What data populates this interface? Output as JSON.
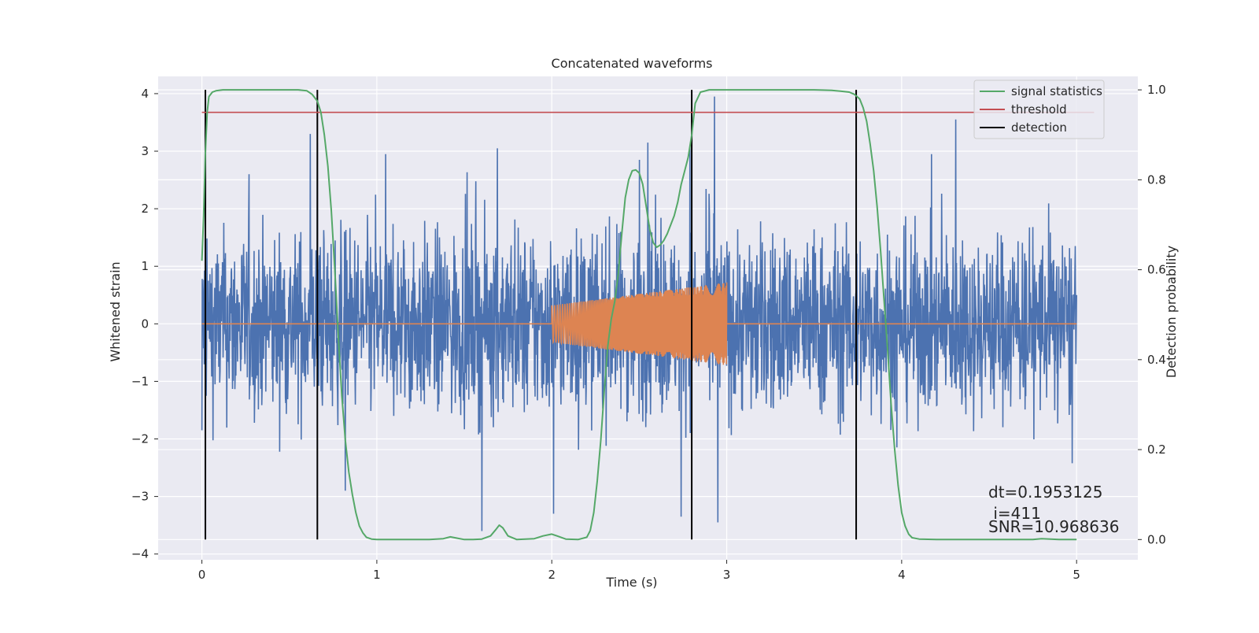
{
  "chart_data": {
    "type": "line",
    "title": "Concatenated waveforms",
    "xlabel": "Time (s)",
    "ylabel": "Whitened strain",
    "ylabel_right": "Detection probability",
    "xlim": [
      -0.25,
      5.35
    ],
    "ylim": [
      -4.1,
      4.3
    ],
    "ylim_right": [
      -0.045,
      1.03
    ],
    "x_ticks": [
      0,
      1,
      2,
      3,
      4,
      5
    ],
    "x_tick_labels": [
      "0",
      "1",
      "2",
      "3",
      "4",
      "5"
    ],
    "y_ticks": [
      4,
      3,
      2,
      1,
      0,
      -1,
      -2,
      -3,
      -4
    ],
    "y_tick_labels": [
      "4",
      "3",
      "2",
      "1",
      "0",
      "−1",
      "−2",
      "−3",
      "−4"
    ],
    "y_right_ticks": [
      1.0,
      0.8,
      0.6,
      0.4,
      0.2,
      0.0
    ],
    "y_right_tick_labels": [
      "1.0",
      "0.8",
      "0.6",
      "0.4",
      "0.2",
      "0.0"
    ],
    "grid": true,
    "legend_position": "top-right",
    "legend": [
      "signal statistics",
      "threshold",
      "detection"
    ],
    "colors": {
      "background": "#eaeaf2",
      "strain": "#4c72b0",
      "template": "#dd8452",
      "signal_statistics": "#55a868",
      "threshold": "#c44e52",
      "detection": "#000000",
      "grid": "#ffffff"
    },
    "series": [
      {
        "name": "signal statistics",
        "axis": "right",
        "x": [
          0.0,
          0.01,
          0.02,
          0.03,
          0.04,
          0.06,
          0.08,
          0.12,
          0.2,
          0.3,
          0.4,
          0.5,
          0.55,
          0.6,
          0.63,
          0.66,
          0.68,
          0.7,
          0.72,
          0.74,
          0.76,
          0.78,
          0.8,
          0.82,
          0.84,
          0.86,
          0.88,
          0.9,
          0.92,
          0.94,
          0.97,
          1.0,
          1.1,
          1.2,
          1.3,
          1.38,
          1.42,
          1.46,
          1.5,
          1.55,
          1.6,
          1.65,
          1.68,
          1.7,
          1.72,
          1.75,
          1.8,
          1.9,
          1.95,
          2.0,
          2.03,
          2.08,
          2.15,
          2.2,
          2.22,
          2.24,
          2.26,
          2.28,
          2.3,
          2.32,
          2.34,
          2.36,
          2.38,
          2.4,
          2.42,
          2.44,
          2.46,
          2.48,
          2.5,
          2.52,
          2.54,
          2.56,
          2.58,
          2.6,
          2.62,
          2.64,
          2.66,
          2.68,
          2.7,
          2.72,
          2.74,
          2.76,
          2.78,
          2.8,
          2.82,
          2.85,
          2.9,
          3.0,
          3.2,
          3.4,
          3.5,
          3.6,
          3.65,
          3.7,
          3.73,
          3.76,
          3.78,
          3.8,
          3.82,
          3.84,
          3.86,
          3.88,
          3.9,
          3.92,
          3.94,
          3.96,
          3.98,
          4.0,
          4.02,
          4.04,
          4.06,
          4.1,
          4.2,
          4.4,
          4.6,
          4.75,
          4.8,
          4.9,
          5.0
        ],
        "values": [
          0.62,
          0.72,
          0.86,
          0.95,
          0.985,
          0.995,
          0.998,
          1.0,
          1.0,
          1.0,
          1.0,
          1.0,
          1.0,
          0.998,
          0.99,
          0.975,
          0.95,
          0.9,
          0.83,
          0.73,
          0.6,
          0.45,
          0.32,
          0.22,
          0.15,
          0.1,
          0.06,
          0.03,
          0.015,
          0.005,
          0.001,
          0.0,
          0.0,
          0.0,
          0.0,
          0.002,
          0.006,
          0.003,
          0.0,
          0.0,
          0.001,
          0.008,
          0.022,
          0.032,
          0.026,
          0.008,
          0.0,
          0.002,
          0.008,
          0.012,
          0.008,
          0.001,
          0.0,
          0.005,
          0.02,
          0.06,
          0.13,
          0.22,
          0.33,
          0.43,
          0.49,
          0.53,
          0.59,
          0.68,
          0.76,
          0.8,
          0.82,
          0.822,
          0.815,
          0.79,
          0.74,
          0.69,
          0.66,
          0.65,
          0.655,
          0.665,
          0.68,
          0.7,
          0.72,
          0.75,
          0.79,
          0.82,
          0.85,
          0.9,
          0.97,
          0.995,
          1.0,
          1.0,
          1.0,
          1.0,
          1.0,
          0.999,
          0.997,
          0.995,
          0.99,
          0.98,
          0.96,
          0.93,
          0.88,
          0.82,
          0.74,
          0.64,
          0.53,
          0.42,
          0.3,
          0.2,
          0.12,
          0.06,
          0.03,
          0.012,
          0.004,
          0.001,
          0.0,
          0.0,
          0.0,
          0.0,
          0.002,
          0.0,
          0.0
        ]
      },
      {
        "name": "threshold",
        "axis": "right",
        "x": [
          0.0,
          5.1
        ],
        "values": [
          0.95,
          0.95
        ]
      },
      {
        "name": "detection",
        "axis": "right",
        "vlines_x": [
          0.02,
          0.66,
          2.8,
          3.74
        ],
        "range": [
          0.0,
          1.0
        ]
      },
      {
        "axis": "left",
        "description_free": true,
        "x_range": [
          0.0,
          5.0
        ],
        "amplitude_envelope": 2.0,
        "peaks": [
          {
            "x": 0.0,
            "y": 2.05
          },
          {
            "x": 0.0,
            "y": -1.85
          },
          {
            "x": 0.62,
            "y": 3.3
          },
          {
            "x": 0.66,
            "y": 3.15
          },
          {
            "x": 0.82,
            "y": -2.9
          },
          {
            "x": 1.6,
            "y": -3.6
          },
          {
            "x": 1.69,
            "y": 3.05
          },
          {
            "x": 2.01,
            "y": -3.3
          },
          {
            "x": 2.5,
            "y": 2.85
          },
          {
            "x": 2.55,
            "y": 3.15
          },
          {
            "x": 2.74,
            "y": -3.35
          },
          {
            "x": 2.79,
            "y": 3.1
          },
          {
            "x": 2.93,
            "y": 3.95
          },
          {
            "x": 2.95,
            "y": -3.45
          },
          {
            "x": 4.31,
            "y": 3.55
          },
          {
            "x": 5.0,
            "y": 0.5
          }
        ]
      },
      {
        "axis": "left",
        "x_range": [
          0.0,
          5.0
        ],
        "chirp_x_range": [
          2.0,
          3.0
        ],
        "chirp_amplitude_start": 0.32,
        "chirp_amplitude_end": 0.72,
        "baseline": 0.0
      }
    ]
  },
  "annotations": {
    "dt": "dt=0.1953125",
    "i": " i=411",
    "snr": "SNR=10.968636"
  }
}
